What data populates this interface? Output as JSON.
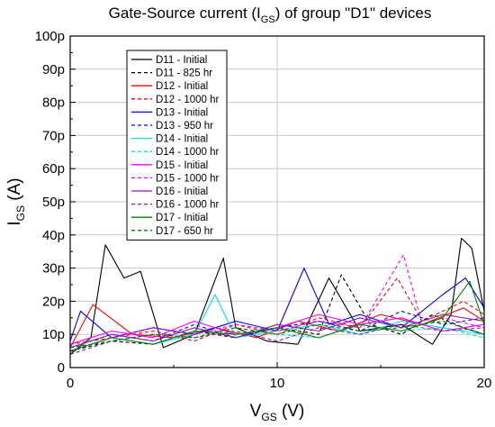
{
  "chart_data": {
    "type": "line",
    "title": {
      "prefix": "Gate-Source current (I",
      "sub": "GS",
      "suffix": ") of group \"D1\" devices"
    },
    "xlabel": {
      "main": "V",
      "sub": "GS",
      "suffix": " (V)"
    },
    "ylabel": {
      "main": "I",
      "sub": "GS",
      "suffix": " (A)"
    },
    "xlim": [
      0,
      20
    ],
    "ylim": [
      0,
      100
    ],
    "y_unit": "pA",
    "x_ticks": [
      {
        "v": 0,
        "label": "0"
      },
      {
        "v": 10,
        "label": "10"
      },
      {
        "v": 20,
        "label": "20"
      }
    ],
    "y_ticks": [
      {
        "v": 0,
        "label": "0"
      },
      {
        "v": 10,
        "label": "10p"
      },
      {
        "v": 20,
        "label": "20p"
      },
      {
        "v": 30,
        "label": "30p"
      },
      {
        "v": 40,
        "label": "40p"
      },
      {
        "v": 50,
        "label": "50p"
      },
      {
        "v": 60,
        "label": "60p"
      },
      {
        "v": 70,
        "label": "70p"
      },
      {
        "v": 80,
        "label": "80p"
      },
      {
        "v": 90,
        "label": "90p"
      },
      {
        "v": 100,
        "label": "100p"
      }
    ],
    "grid": true,
    "legend_position": "top-left",
    "series": [
      {
        "name": "D11 - Initial",
        "color": "#000000",
        "dash": "solid",
        "x": [
          0,
          1,
          1.7,
          2.6,
          3.4,
          4.5,
          6,
          7.4,
          8,
          9.5,
          11,
          12.5,
          14,
          16,
          17.5,
          18.4,
          18.9,
          19.4,
          20
        ],
        "y": [
          4,
          9,
          37,
          27,
          29,
          6,
          10,
          33,
          12,
          8,
          7,
          27,
          11,
          13,
          7,
          16,
          39,
          36,
          17
        ]
      },
      {
        "name": "D11 - 825 hr",
        "color": "#000000",
        "dash": "dashed",
        "x": [
          0,
          2,
          4,
          6,
          8,
          10,
          12,
          13.1,
          14.5,
          16,
          17.5,
          19,
          20
        ],
        "y": [
          5,
          8,
          7,
          11,
          9,
          12,
          10,
          28,
          13,
          10,
          16,
          12,
          10
        ]
      },
      {
        "name": "D12 - Initial",
        "color": "#ff0000",
        "dash": "solid",
        "x": [
          0,
          1.1,
          3,
          5,
          7,
          9,
          11,
          13,
          15,
          17,
          19,
          20
        ],
        "y": [
          6,
          19,
          10,
          9,
          12,
          9,
          14,
          11,
          16,
          13,
          18,
          14
        ]
      },
      {
        "name": "D12 - 1000 hr",
        "color": "#ff0000",
        "dash": "dashed",
        "x": [
          0,
          2,
          4,
          6,
          8,
          10,
          12,
          14,
          15.8,
          17,
          19,
          20
        ],
        "y": [
          7,
          9,
          11,
          8,
          13,
          10,
          15,
          12,
          27,
          14,
          20,
          16
        ]
      },
      {
        "name": "D13 - Initial",
        "color": "#0000ff",
        "dash": "solid",
        "x": [
          0,
          0.5,
          2,
          4,
          6,
          8,
          10,
          11.3,
          12.5,
          14,
          16,
          18,
          19.1,
          20
        ],
        "y": [
          8,
          17,
          9,
          12,
          10,
          14,
          11,
          30,
          13,
          16,
          12,
          22,
          27,
          18
        ]
      },
      {
        "name": "D13 - 950 hr",
        "color": "#0000ff",
        "dash": "dashed",
        "x": [
          0,
          2,
          4,
          6,
          8,
          10,
          12,
          14,
          16,
          18,
          20
        ],
        "y": [
          6,
          10,
          8,
          13,
          9,
          12,
          14,
          11,
          17,
          13,
          15
        ]
      },
      {
        "name": "D14 - Initial",
        "color": "#00e5e5",
        "dash": "solid",
        "x": [
          0,
          2,
          4,
          6,
          7,
          8,
          10,
          12,
          14,
          16,
          18,
          20
        ],
        "y": [
          5,
          9,
          7,
          10,
          22,
          9,
          11,
          13,
          10,
          14,
          12,
          10
        ]
      },
      {
        "name": "D14 - 1000 hr",
        "color": "#00e5e5",
        "dash": "dashed",
        "x": [
          0,
          2,
          4,
          6,
          8,
          10,
          12,
          14,
          16,
          18,
          20
        ],
        "y": [
          6,
          8,
          10,
          9,
          12,
          10,
          9,
          13,
          11,
          12,
          9
        ]
      },
      {
        "name": "D15 - Initial",
        "color": "#ff00ff",
        "dash": "solid",
        "x": [
          0,
          2,
          4,
          6,
          8,
          10,
          12,
          14,
          16,
          18,
          20
        ],
        "y": [
          7,
          11,
          9,
          14,
          10,
          12,
          16,
          13,
          15,
          11,
          13
        ]
      },
      {
        "name": "D15 - 1000 hr",
        "color": "#ff00ff",
        "dash": "dashed",
        "x": [
          0,
          2,
          4,
          6,
          8,
          10,
          12,
          14,
          16.1,
          17,
          18,
          20
        ],
        "y": [
          5,
          9,
          12,
          10,
          13,
          11,
          14,
          12,
          34,
          13,
          15,
          12
        ]
      },
      {
        "name": "D16 - Initial",
        "color": "#8b1fa9",
        "dash": "solid",
        "x": [
          0,
          2,
          4,
          6,
          8,
          10,
          12,
          14,
          16,
          18,
          20
        ],
        "y": [
          6,
          10,
          8,
          12,
          9,
          13,
          11,
          15,
          12,
          16,
          14
        ]
      },
      {
        "name": "D16 - 1000 hr",
        "color": "#8b1fa9",
        "dash": "dashed",
        "x": [
          0,
          2,
          4,
          6,
          8,
          10,
          12,
          14,
          16,
          18,
          20
        ],
        "y": [
          4,
          8,
          10,
          9,
          11,
          8,
          12,
          10,
          13,
          11,
          12
        ]
      },
      {
        "name": "D17 - Initial",
        "color": "#008000",
        "dash": "solid",
        "x": [
          0,
          2,
          4,
          6,
          8,
          10,
          12,
          14,
          16,
          18,
          19.3,
          20
        ],
        "y": [
          5,
          9,
          7,
          11,
          10,
          12,
          9,
          13,
          11,
          15,
          26,
          13
        ]
      },
      {
        "name": "D17 - 650 hr",
        "color": "#008000",
        "dash": "dashed",
        "x": [
          0,
          2,
          4,
          6,
          8,
          10,
          12,
          14,
          16,
          18,
          20
        ],
        "y": [
          6,
          8,
          10,
          9,
          12,
          10,
          13,
          11,
          12,
          14,
          10
        ]
      }
    ]
  }
}
